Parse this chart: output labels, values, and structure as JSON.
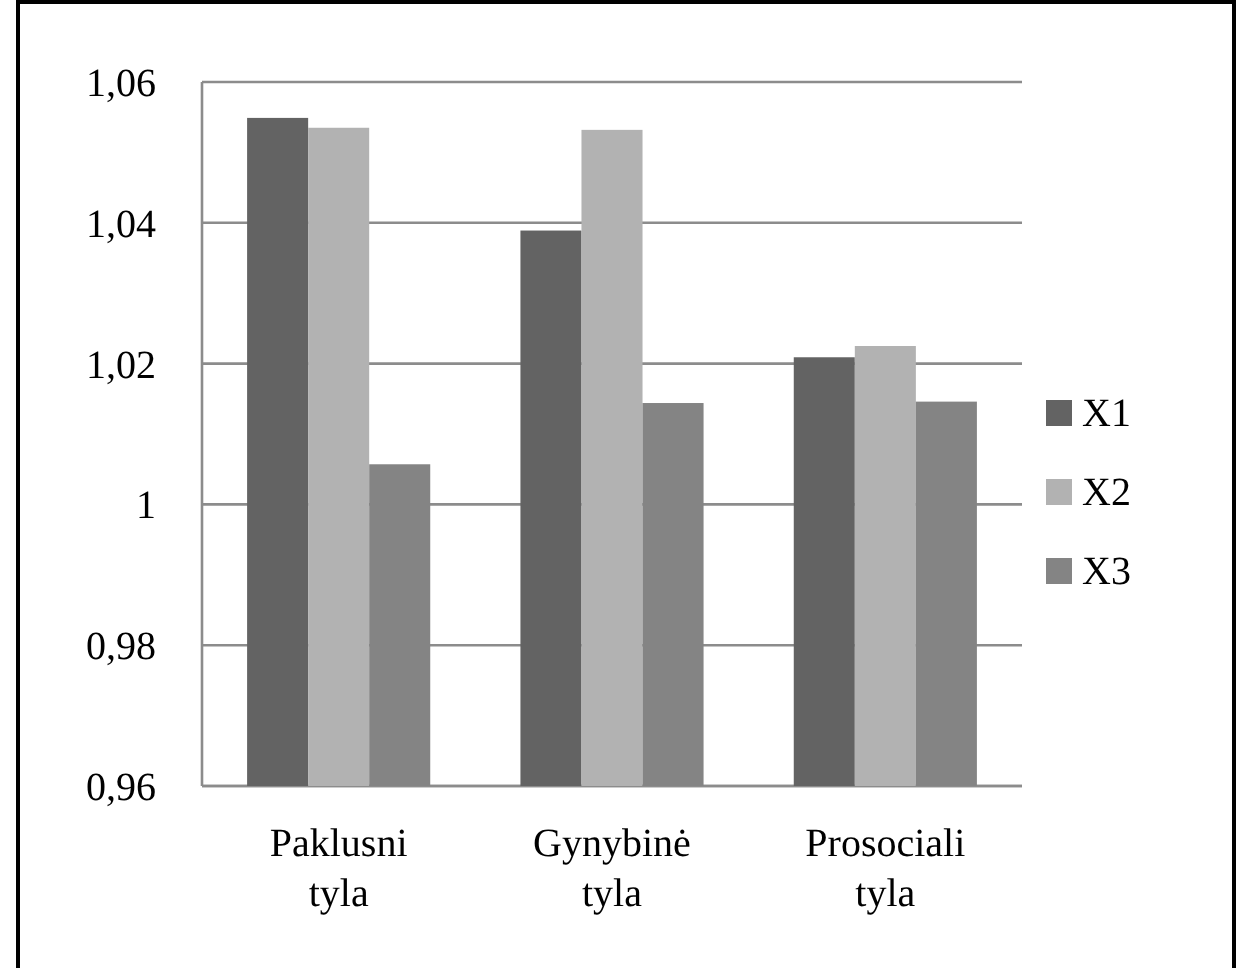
{
  "chart_data": {
    "type": "bar",
    "categories": [
      "Paklusni tyla",
      "Gynybinė tyla",
      "Prosociali tyla"
    ],
    "series": [
      {
        "name": "X1",
        "color": "#636363",
        "values": [
          1.0549,
          1.0389,
          1.0209
        ]
      },
      {
        "name": "X2",
        "color": "#b2b2b2",
        "values": [
          1.0535,
          1.0532,
          1.0225
        ]
      },
      {
        "name": "X3",
        "color": "#848484",
        "values": [
          1.0057,
          1.0144,
          1.0146
        ]
      }
    ],
    "ylim": [
      0.96,
      1.06
    ],
    "yticks": [
      {
        "value": 0.96,
        "label": "0,96"
      },
      {
        "value": 0.98,
        "label": "0,98"
      },
      {
        "value": 1,
        "label": "1"
      },
      {
        "value": 1.02,
        "label": "1,02"
      },
      {
        "value": 1.04,
        "label": "1,04"
      },
      {
        "value": 1.06,
        "label": "1,06"
      }
    ],
    "grid": "y",
    "legend": "right"
  }
}
